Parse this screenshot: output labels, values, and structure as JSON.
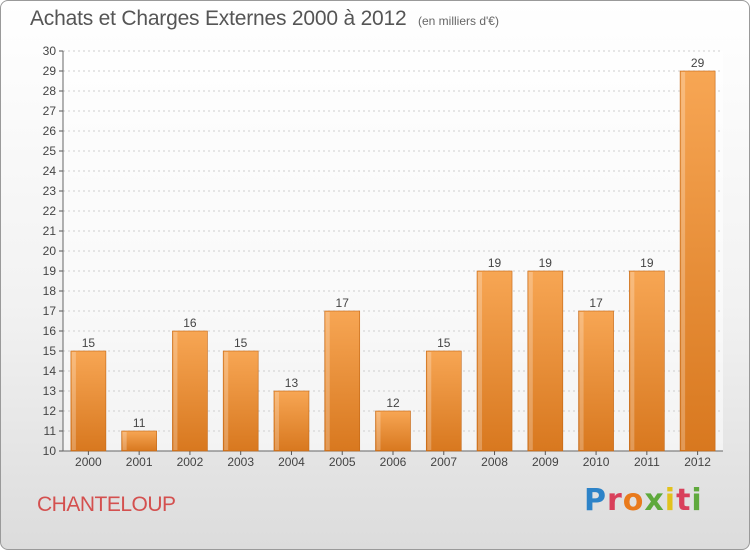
{
  "header": {
    "title": "Achats et Charges Externes 2000 à 2012",
    "unit": "(en milliers d'€)"
  },
  "footer": {
    "commune": "CHANTELOUP",
    "logo": "Proxiti"
  },
  "colors": {
    "bar_top": "#f7a654",
    "bar_bottom": "#d8781f",
    "bar_side": "#c26614",
    "commune_text": "#d4504f"
  },
  "chart_data": {
    "type": "bar",
    "title": "Achats et Charges Externes 2000 à 2012",
    "subtitle": "(en milliers d'€)",
    "xlabel": "",
    "ylabel": "",
    "categories": [
      "2000",
      "2001",
      "2002",
      "2003",
      "2004",
      "2005",
      "2006",
      "2007",
      "2008",
      "2009",
      "2010",
      "2011",
      "2012"
    ],
    "values": [
      15,
      11,
      16,
      15,
      13,
      17,
      12,
      15,
      19,
      19,
      17,
      19,
      29
    ],
    "ylim": [
      10,
      30
    ],
    "yticks": [
      10,
      11,
      12,
      13,
      14,
      15,
      16,
      17,
      18,
      19,
      20,
      21,
      22,
      23,
      24,
      25,
      26,
      27,
      28,
      29,
      30
    ],
    "grid": true,
    "data_labels": true,
    "legend": "none"
  }
}
